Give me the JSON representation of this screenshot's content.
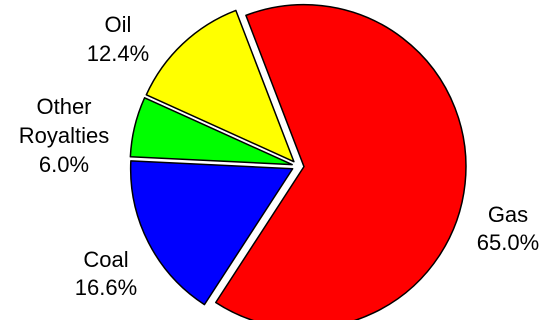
{
  "chart_data": {
    "type": "pie",
    "exploded": true,
    "slices": [
      {
        "name": "Gas",
        "label": "Gas",
        "value": 65.0,
        "pct_label": "65.0%",
        "color": "#ff0000"
      },
      {
        "name": "Coal",
        "label": "Coal",
        "value": 16.6,
        "pct_label": "16.6%",
        "color": "#0000ff"
      },
      {
        "name": "Other Royalties",
        "label_lines": [
          "Other",
          "Royalties"
        ],
        "value": 6.0,
        "pct_label": "6.0%",
        "color": "#00ff00"
      },
      {
        "name": "Oil",
        "label": "Oil",
        "value": 12.4,
        "pct_label": "12.4%",
        "color": "#ffff00"
      }
    ]
  }
}
